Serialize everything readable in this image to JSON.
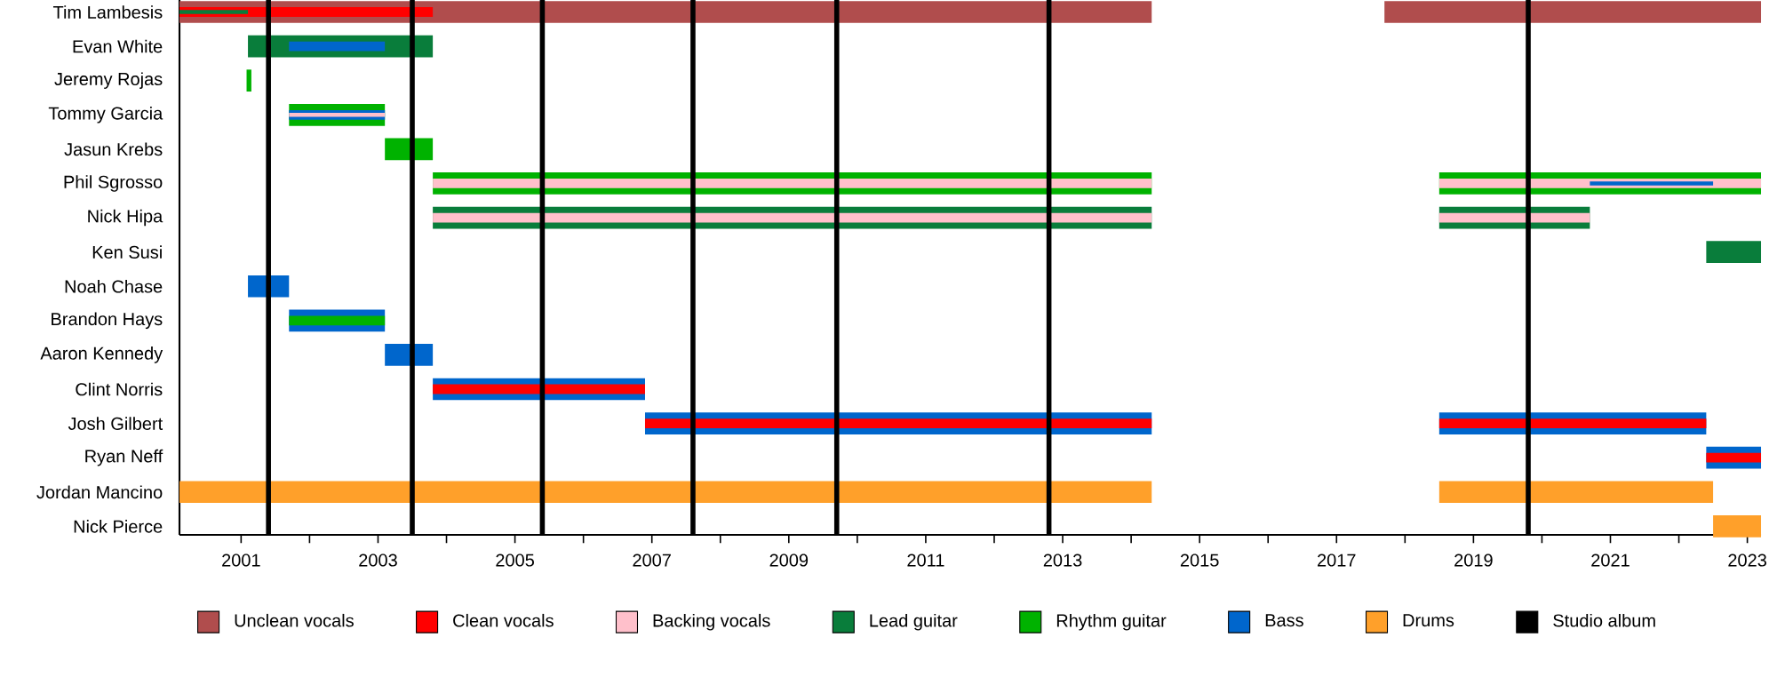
{
  "chart_data": {
    "type": "bar",
    "orientation": "horizontal",
    "legend": "bottom",
    "categories": [
      "Tim Lambesis",
      "Evan White",
      "Jeremy Rojas",
      "Tommy Garcia",
      "Jasun Krebs",
      "Phil Sgrosso",
      "Nick Hipa",
      "Ken Susi",
      "Noah Chase",
      "Brandon Hays",
      "Aaron Kennedy",
      "Clint Norris",
      "Josh Gilbert",
      "Ryan Neff",
      "Jordan Mancino",
      "Nick Pierce"
    ],
    "xlim": [
      2000.1,
      2023.2
    ],
    "xticks": [
      2001,
      {
        "value": 2002,
        "label": null
      },
      2003,
      {
        "value": 2004,
        "label": null
      },
      2005,
      {
        "value": 2006,
        "label": null
      },
      2007,
      {
        "value": 2008,
        "label": null
      },
      2009,
      {
        "value": 2010,
        "label": null
      },
      2011,
      {
        "value": 2012,
        "label": null
      },
      2013,
      {
        "value": 2014,
        "label": null
      },
      2015,
      {
        "value": 2016,
        "label": null
      },
      2017,
      {
        "value": 2018,
        "label": null
      },
      2019,
      {
        "value": 2020,
        "label": null
      },
      2021,
      {
        "value": 2022,
        "label": null
      },
      2023
    ],
    "series": [
      {
        "name": "Unclean vocals",
        "color": "#b04d4d",
        "base": [
          2000.1,
          null,
          null,
          null,
          null,
          null,
          null,
          null,
          null,
          null,
          null,
          null,
          null,
          null,
          null,
          null
        ],
        "values": [
          14.2,
          null,
          null,
          null,
          null,
          null,
          null,
          null,
          null,
          null,
          null,
          null,
          null,
          null,
          null,
          null
        ]
      },
      {
        "name": "Clean vocals",
        "color": "#ff0000",
        "base": [
          2000.1,
          null,
          null,
          null,
          null,
          null,
          null,
          null,
          null,
          null,
          null,
          2003.8,
          2006.9,
          2022.4,
          null,
          null
        ],
        "values": [
          3.7,
          null,
          null,
          null,
          null,
          null,
          null,
          null,
          null,
          null,
          null,
          3.1,
          7.4,
          0.8,
          null,
          null
        ]
      },
      {
        "name": "Backing vocals",
        "color": "#ffc0cb",
        "base": [
          null,
          null,
          null,
          2001.7,
          null,
          2003.8,
          2003.8,
          null,
          null,
          null,
          null,
          null,
          null,
          null,
          null,
          null
        ],
        "values": [
          null,
          null,
          null,
          1.4,
          null,
          10.5,
          10.5,
          null,
          null,
          null,
          null,
          null,
          null,
          null,
          null,
          null
        ]
      },
      {
        "name": "Lead guitar",
        "color": "#097d3b",
        "base": [
          2000.1,
          2001.1,
          null,
          null,
          null,
          null,
          2003.8,
          2022.4,
          null,
          null,
          null,
          null,
          null,
          null,
          null,
          null
        ],
        "values": [
          1.0,
          2.7,
          null,
          null,
          null,
          null,
          10.5,
          0.8,
          null,
          null,
          null,
          null,
          null,
          null,
          null,
          null
        ]
      },
      {
        "name": "Rhythm guitar",
        "color": "#00b200",
        "base": [
          null,
          null,
          2001.08,
          null,
          2003.1,
          2003.8,
          null,
          null,
          null,
          2001.7,
          null,
          null,
          null,
          null,
          null,
          null
        ],
        "values": [
          null,
          null,
          0.07,
          null,
          0.7,
          10.5,
          null,
          null,
          null,
          1.4,
          null,
          null,
          null,
          null,
          null,
          null
        ]
      },
      {
        "name": "Bass",
        "color": "#0066cc",
        "base": [
          null,
          2001.7,
          null,
          2001.7,
          null,
          null,
          null,
          null,
          2001.1,
          2001.7,
          2003.1,
          2003.8,
          2006.9,
          2022.4,
          null,
          null
        ],
        "values": [
          null,
          1.4,
          null,
          1.4,
          null,
          null,
          null,
          null,
          0.6,
          1.4,
          0.7,
          3.1,
          7.4,
          0.8,
          null,
          null
        ]
      },
      {
        "name": "Drums",
        "color": "#ffa02a",
        "base": [
          null,
          null,
          null,
          null,
          null,
          null,
          null,
          null,
          null,
          null,
          null,
          null,
          null,
          null,
          2000.1,
          2022.5
        ],
        "values": [
          null,
          null,
          null,
          null,
          null,
          null,
          null,
          null,
          null,
          null,
          null,
          null,
          null,
          null,
          14.2,
          0.7
        ]
      },
      {
        "color": "#ffc0cb",
        "base": [
          null,
          null,
          null,
          null,
          null,
          2018.5,
          2018.5,
          null,
          null,
          null,
          null,
          null,
          null,
          null,
          null,
          null
        ],
        "values": [
          null,
          null,
          null,
          null,
          null,
          4.7,
          2.2,
          null,
          null,
          null,
          null,
          null,
          null,
          null,
          null,
          null
        ]
      },
      {
        "color": "#ff0000",
        "base": [
          null,
          null,
          null,
          null,
          null,
          null,
          null,
          null,
          null,
          null,
          null,
          null,
          2018.5,
          null,
          null,
          null
        ],
        "values": [
          null,
          null,
          null,
          null,
          null,
          null,
          null,
          null,
          null,
          null,
          null,
          null,
          3.9,
          null,
          null,
          null
        ]
      },
      {
        "color": "#b04d4d",
        "base": [
          2017.7,
          null,
          null,
          null,
          null,
          null,
          null,
          null,
          null,
          null,
          null,
          null,
          null,
          null,
          null,
          null
        ],
        "values": [
          5.5,
          null,
          null,
          null,
          null,
          null,
          null,
          null,
          null,
          null,
          null,
          null,
          null,
          null,
          null,
          null
        ]
      },
      {
        "color": "#097d3b",
        "base": [
          null,
          null,
          null,
          null,
          null,
          null,
          2018.5,
          null,
          null,
          null,
          null,
          null,
          null,
          null,
          null,
          null
        ],
        "values": [
          null,
          null,
          null,
          null,
          null,
          null,
          2.2,
          null,
          null,
          null,
          null,
          null,
          null,
          null,
          null,
          null
        ]
      },
      {
        "color": "#00b200",
        "base": [
          null,
          null,
          null,
          2001.7,
          null,
          2018.5,
          null,
          null,
          null,
          null,
          null,
          null,
          null,
          null,
          null,
          null
        ],
        "values": [
          null,
          null,
          null,
          1.4,
          null,
          4.7,
          null,
          null,
          null,
          null,
          null,
          null,
          null,
          null,
          null,
          null
        ]
      },
      {
        "color": "#0066cc",
        "base": [
          null,
          null,
          null,
          null,
          null,
          2020.7,
          null,
          null,
          null,
          null,
          null,
          null,
          2018.5,
          null,
          null,
          null
        ],
        "values": [
          null,
          null,
          null,
          null,
          null,
          1.8,
          null,
          null,
          null,
          null,
          null,
          null,
          3.9,
          null,
          null,
          null
        ]
      },
      {
        "color": "#ffa02a",
        "base": [
          null,
          null,
          null,
          null,
          null,
          null,
          null,
          null,
          null,
          null,
          null,
          null,
          null,
          null,
          2018.5,
          null
        ],
        "values": [
          null,
          null,
          null,
          null,
          null,
          null,
          null,
          null,
          null,
          null,
          null,
          null,
          null,
          null,
          4.0,
          null
        ]
      }
    ],
    "ref_lines": [
      {
        "axis": "x",
        "value": 2001.4,
        "label": "Studio album",
        "color": "#000000"
      },
      {
        "axis": "x",
        "value": 2003.5,
        "color": "#000000"
      },
      {
        "axis": "x",
        "value": 2005.4,
        "color": "#000000"
      },
      {
        "axis": "x",
        "value": 2007.6,
        "color": "#000000"
      },
      {
        "axis": "x",
        "value": 2009.7,
        "color": "#000000"
      },
      {
        "axis": "x",
        "value": 2012.8,
        "color": "#000000"
      },
      {
        "axis": "x",
        "value": 2019.8,
        "color": "#000000"
      }
    ]
  }
}
